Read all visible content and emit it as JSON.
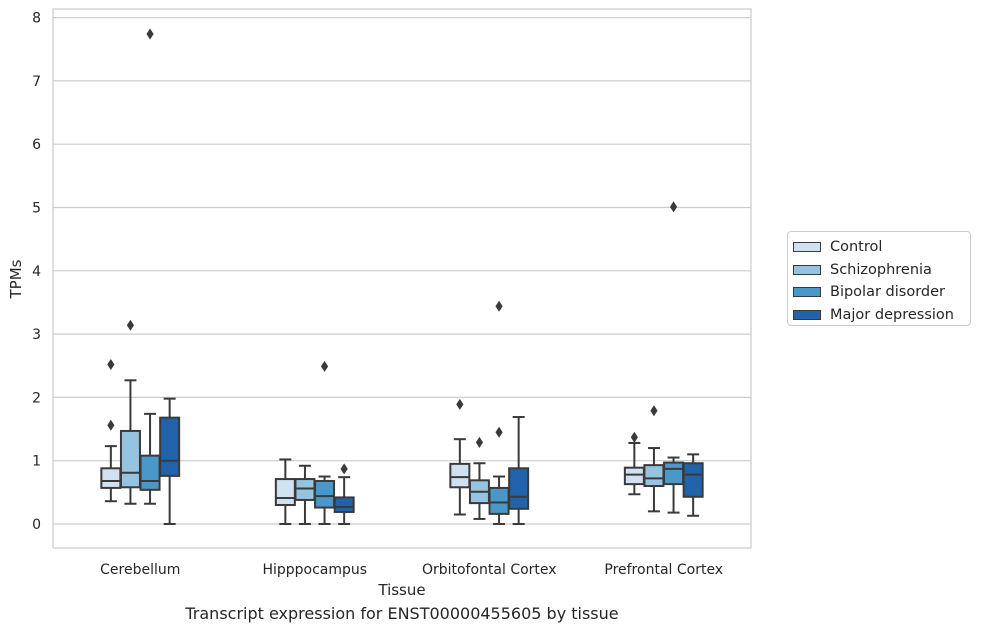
{
  "chart_data": {
    "type": "box",
    "title": "Transcript expression for ENST00000455605 by tissue",
    "xlabel": "Tissue",
    "ylabel": "TPMs",
    "ylim": [
      -0.37,
      8.15
    ],
    "yticks": [
      "0",
      "1",
      "2",
      "3",
      "4",
      "5",
      "6",
      "7",
      "8"
    ],
    "grid": "horizontal",
    "legend_position": "right",
    "categories": [
      "Cerebellum",
      "Hipppocampus",
      "Orbitofontal Cortex",
      "Prefrontal Cortex"
    ],
    "series": [
      {
        "name": "Control",
        "color": "#d0e1f2",
        "boxes": [
          {
            "whisker_low": 0.36,
            "q1": 0.57,
            "median": 0.68,
            "q3": 0.88,
            "whisker_high": 1.23,
            "outliers": [
              1.56,
              2.52
            ]
          },
          {
            "whisker_low": 0.0,
            "q1": 0.3,
            "median": 0.41,
            "q3": 0.71,
            "whisker_high": 1.02,
            "outliers": []
          },
          {
            "whisker_low": 0.15,
            "q1": 0.58,
            "median": 0.74,
            "q3": 0.95,
            "whisker_high": 1.34,
            "outliers": [
              1.89
            ]
          },
          {
            "whisker_low": 0.47,
            "q1": 0.63,
            "median": 0.78,
            "q3": 0.89,
            "whisker_high": 1.28,
            "outliers": [
              1.37
            ]
          }
        ]
      },
      {
        "name": "Schizophrenia",
        "color": "#94c4df",
        "boxes": [
          {
            "whisker_low": 0.32,
            "q1": 0.58,
            "median": 0.81,
            "q3": 1.47,
            "whisker_high": 2.27,
            "outliers": [
              3.14
            ]
          },
          {
            "whisker_low": 0.0,
            "q1": 0.38,
            "median": 0.56,
            "q3": 0.71,
            "whisker_high": 0.92,
            "outliers": []
          },
          {
            "whisker_low": 0.08,
            "q1": 0.33,
            "median": 0.51,
            "q3": 0.69,
            "whisker_high": 0.96,
            "outliers": [
              1.29
            ]
          },
          {
            "whisker_low": 0.2,
            "q1": 0.6,
            "median": 0.72,
            "q3": 0.93,
            "whisker_high": 1.2,
            "outliers": [
              1.79
            ]
          }
        ]
      },
      {
        "name": "Bipolar disorder",
        "color": "#4a98c9",
        "boxes": [
          {
            "whisker_low": 0.32,
            "q1": 0.54,
            "median": 0.68,
            "q3": 1.08,
            "whisker_high": 1.74,
            "outliers": [
              7.74
            ]
          },
          {
            "whisker_low": 0.0,
            "q1": 0.26,
            "median": 0.44,
            "q3": 0.68,
            "whisker_high": 0.75,
            "outliers": [
              2.49
            ]
          },
          {
            "whisker_low": 0.0,
            "q1": 0.16,
            "median": 0.34,
            "q3": 0.57,
            "whisker_high": 0.75,
            "outliers": [
              1.45,
              3.44
            ]
          },
          {
            "whisker_low": 0.18,
            "q1": 0.63,
            "median": 0.87,
            "q3": 0.97,
            "whisker_high": 1.05,
            "outliers": [
              5.01
            ]
          }
        ]
      },
      {
        "name": "Major depression",
        "color": "#2163aa",
        "boxes": [
          {
            "whisker_low": 0.0,
            "q1": 0.76,
            "median": 1.0,
            "q3": 1.68,
            "whisker_high": 1.98,
            "outliers": []
          },
          {
            "whisker_low": 0.0,
            "q1": 0.19,
            "median": 0.27,
            "q3": 0.42,
            "whisker_high": 0.74,
            "outliers": [
              0.87
            ]
          },
          {
            "whisker_low": 0.0,
            "q1": 0.24,
            "median": 0.43,
            "q3": 0.88,
            "whisker_high": 1.69,
            "outliers": []
          },
          {
            "whisker_low": 0.13,
            "q1": 0.43,
            "median": 0.78,
            "q3": 0.96,
            "whisker_high": 1.1,
            "outliers": []
          }
        ]
      }
    ]
  }
}
